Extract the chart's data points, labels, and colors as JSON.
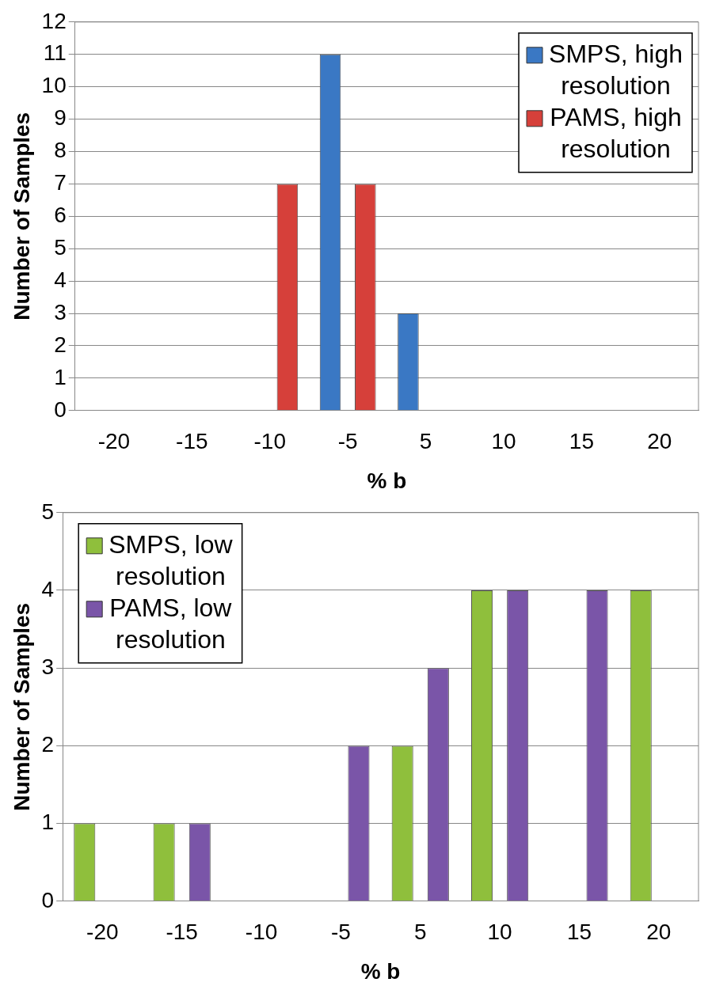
{
  "chart_data": [
    {
      "type": "bar",
      "xlabel": "% b",
      "ylabel": "Number of Samples",
      "categories": [
        "-20",
        "-15",
        "-10",
        "-5",
        "5",
        "10",
        "15",
        "20"
      ],
      "series": [
        {
          "name": "SMPS, high resolution",
          "color": "#3a78c4",
          "values": [
            0,
            0,
            0,
            11,
            3,
            0,
            0,
            0
          ]
        },
        {
          "name": "PAMS, high resolution",
          "color": "#d6403a",
          "values": [
            0,
            0,
            7,
            7,
            0,
            0,
            0,
            0
          ]
        }
      ],
      "ylim": [
        0,
        12
      ],
      "yticks": [
        0,
        1,
        2,
        3,
        4,
        5,
        6,
        7,
        8,
        9,
        10,
        11,
        12
      ],
      "grid": "y",
      "legend": "top right"
    },
    {
      "type": "bar",
      "xlabel": "% b",
      "ylabel": "Number of Samples",
      "categories": [
        "-20",
        "-15",
        "-10",
        "-5",
        "5",
        "10",
        "15",
        "20"
      ],
      "series": [
        {
          "name": "SMPS, low resolution",
          "color": "#8fbf3c",
          "values": [
            1,
            1,
            0,
            0,
            2,
            4,
            0,
            4
          ]
        },
        {
          "name": "PAMS, low resolution",
          "color": "#7a55a8",
          "values": [
            0,
            1,
            0,
            2,
            3,
            4,
            4,
            0
          ]
        }
      ],
      "ylim": [
        0,
        5
      ],
      "yticks": [
        0,
        1,
        2,
        3,
        4,
        5
      ],
      "grid": "y",
      "legend": "top left"
    }
  ]
}
